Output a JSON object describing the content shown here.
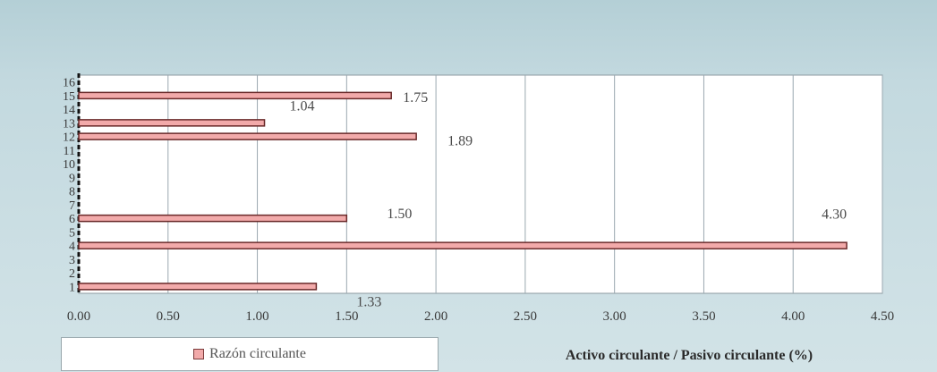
{
  "chart_data": {
    "type": "bar",
    "orientation": "horizontal",
    "categories": [
      "1",
      "2",
      "3",
      "4",
      "5",
      "6",
      "7",
      "8",
      "9",
      "10",
      "11",
      "12",
      "13",
      "14",
      "15",
      "16"
    ],
    "series": [
      {
        "name": "Razón circulante",
        "values": [
          1.33,
          null,
          null,
          4.3,
          null,
          1.5,
          null,
          null,
          null,
          null,
          null,
          1.89,
          1.04,
          null,
          1.75,
          null
        ],
        "labels": [
          "1.33",
          null,
          null,
          "4.30",
          null,
          "1.50",
          null,
          null,
          null,
          null,
          null,
          "1.89",
          "1.04",
          null,
          "1.75",
          null
        ]
      }
    ],
    "xticks": [
      "0.00",
      "0.50",
      "1.00",
      "1.50",
      "2.00",
      "2.50",
      "3.00",
      "3.50",
      "4.00",
      "4.50"
    ],
    "xlim": [
      0,
      4.5
    ],
    "xlabel": "Activo circulante / Pasivo circulante (%)",
    "ylabel": "",
    "title": "",
    "grid": true,
    "legend_position": "bottom-left",
    "colors": {
      "bar_fill": "#f2aaaa",
      "bar_edge": "#6a2a2a",
      "grid": "#9aa8b0",
      "plot_bg": "#ffffff"
    }
  }
}
